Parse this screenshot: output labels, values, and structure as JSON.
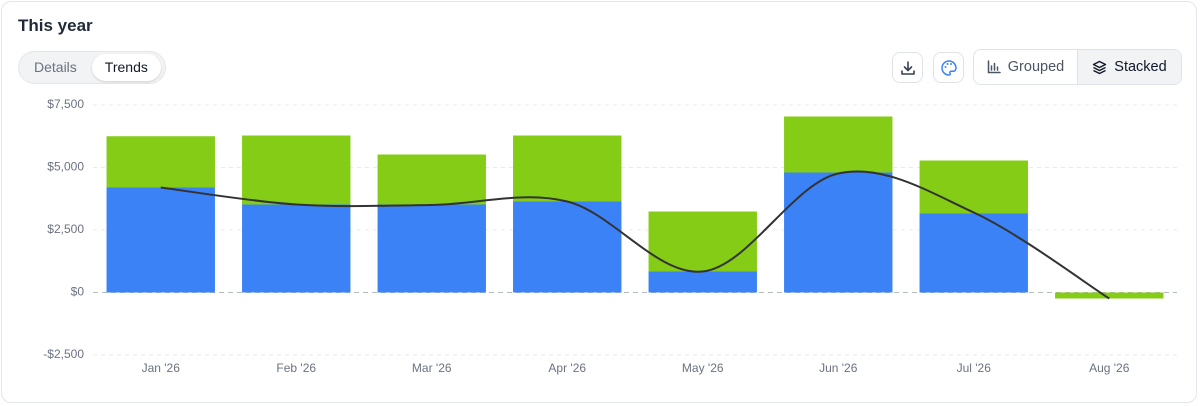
{
  "ui": {
    "title": "This year",
    "tabs": [
      "Details",
      "Trends"
    ],
    "active_tab": 1,
    "modes": [
      "Grouped",
      "Stacked"
    ],
    "active_mode": 1
  },
  "chart_data": {
    "type": "bar",
    "stacked": true,
    "grid": true,
    "categories": [
      "Jan '26",
      "Feb '26",
      "Mar '26",
      "Apr '26",
      "May '26",
      "Jun '26",
      "Jul '26",
      "Aug '26"
    ],
    "series": [
      {
        "type": "bar",
        "color": "#3b82f6",
        "values": [
          4200,
          3520,
          3520,
          3640,
          840,
          4800,
          3160,
          0
        ]
      },
      {
        "type": "bar",
        "color": "#84cc16",
        "values": [
          2050,
          2760,
          2000,
          2640,
          2400,
          2240,
          2120,
          -240
        ]
      },
      {
        "type": "line",
        "color": "#333333",
        "values": [
          4200,
          3520,
          3500,
          3640,
          840,
          4760,
          3200,
          -240
        ]
      }
    ],
    "ylim": [
      -2500,
      7500
    ],
    "yticks": [
      {
        "value": -2500,
        "label": "-$2,500"
      },
      {
        "value": 0,
        "label": "$0"
      },
      {
        "value": 2500,
        "label": "$2,500"
      },
      {
        "value": 5000,
        "label": "$5,000"
      },
      {
        "value": 7500,
        "label": "$7,500"
      }
    ]
  }
}
